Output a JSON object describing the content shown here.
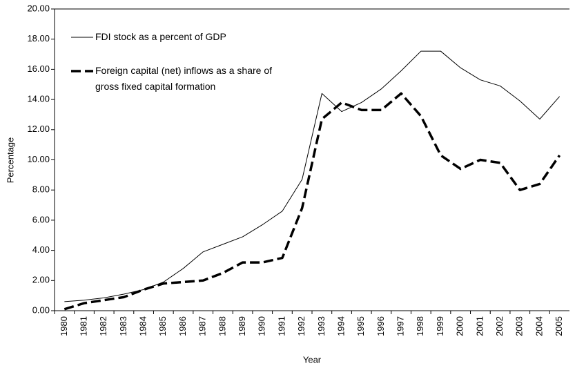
{
  "chart_data": {
    "type": "line",
    "categories": [
      "1980",
      "1981",
      "1982",
      "1983",
      "1984",
      "1985",
      "1986",
      "1987",
      "1988",
      "1989",
      "1990",
      "1991",
      "1992",
      "1993",
      "1994",
      "1995",
      "1996",
      "1997",
      "1998",
      "1999",
      "2000",
      "2001",
      "2002",
      "2003",
      "2004",
      "2005"
    ],
    "series": [
      {
        "name": "FDI stock as a percent of GDP",
        "color": "#000000",
        "dash": false,
        "values": [
          0.6,
          0.7,
          0.85,
          1.1,
          1.4,
          1.9,
          2.8,
          3.9,
          4.4,
          4.9,
          5.7,
          6.6,
          8.7,
          14.4,
          13.2,
          13.8,
          14.7,
          15.9,
          17.2,
          17.2,
          16.1,
          15.3,
          14.9,
          13.9,
          12.7,
          14.2
        ]
      },
      {
        "name": "Foreign capital (net) inflows as a share of gross fixed capital formation",
        "color": "#000000",
        "dash": true,
        "values": [
          0.1,
          0.5,
          0.7,
          0.9,
          1.4,
          1.8,
          1.9,
          2.0,
          2.5,
          3.2,
          3.2,
          3.5,
          6.8,
          12.7,
          13.8,
          13.3,
          13.3,
          14.4,
          12.9,
          10.3,
          9.4,
          10.0,
          9.8,
          8.0,
          8.4,
          10.3
        ]
      }
    ],
    "xlabel": "Year",
    "ylabel": "Percentage",
    "ylim": [
      0,
      20
    ],
    "yticks": [
      {
        "value": 0,
        "label": "0.00"
      },
      {
        "value": 2,
        "label": "2.00"
      },
      {
        "value": 4,
        "label": "4.00"
      },
      {
        "value": 6,
        "label": "6.00"
      },
      {
        "value": 8,
        "label": "8.00"
      },
      {
        "value": 10,
        "label": "10.00"
      },
      {
        "value": 12,
        "label": "12.00"
      },
      {
        "value": 14,
        "label": "14.00"
      },
      {
        "value": 16,
        "label": "16.00"
      },
      {
        "value": 18,
        "label": "18.00"
      },
      {
        "value": 20,
        "label": "20.00"
      }
    ],
    "grid": false,
    "legend": "upper left"
  }
}
